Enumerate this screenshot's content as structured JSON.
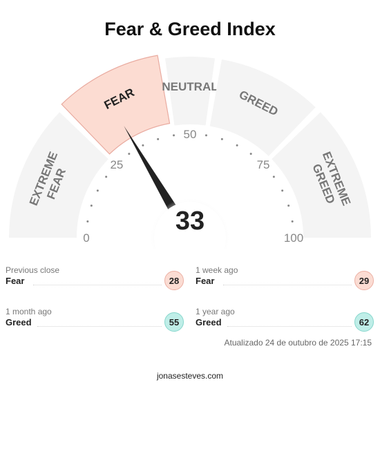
{
  "title": "Fear & Greed Index",
  "gauge": {
    "value": 33,
    "value_label": "33",
    "min": 0,
    "max": 100,
    "active_segment": "fear",
    "segments": [
      {
        "key": "extreme_fear",
        "lines": [
          "EXTREME",
          "FEAR"
        ],
        "from": 0,
        "to": 25
      },
      {
        "key": "fear",
        "lines": [
          "FEAR"
        ],
        "from": 25,
        "to": 45
      },
      {
        "key": "neutral",
        "lines": [
          "NEUTRAL"
        ],
        "from": 45,
        "to": 55
      },
      {
        "key": "greed",
        "lines": [
          "GREED"
        ],
        "from": 55,
        "to": 75
      },
      {
        "key": "extreme_greed",
        "lines": [
          "EXTREME",
          "GREED"
        ],
        "from": 75,
        "to": 100
      }
    ],
    "ticks": [
      "0",
      "25",
      "50",
      "75",
      "100"
    ],
    "colors": {
      "segment": "#f4f4f4",
      "active_fill": "#fcdcd2",
      "active_stroke": "#e9aba0",
      "segment_text": "#777777",
      "active_text": "#222222",
      "needle": "#222222"
    }
  },
  "history": [
    {
      "label": "Previous close",
      "status": "Fear",
      "value": "28",
      "tone": "fear"
    },
    {
      "label": "1 week ago",
      "status": "Fear",
      "value": "29",
      "tone": "fear"
    },
    {
      "label": "1 month ago",
      "status": "Greed",
      "value": "55",
      "tone": "greed"
    },
    {
      "label": "1 year ago",
      "status": "Greed",
      "value": "62",
      "tone": "greed"
    }
  ],
  "updated": "Atualizado 24 de outubro de 2025 17:15",
  "footer": "jonasesteves.com"
}
